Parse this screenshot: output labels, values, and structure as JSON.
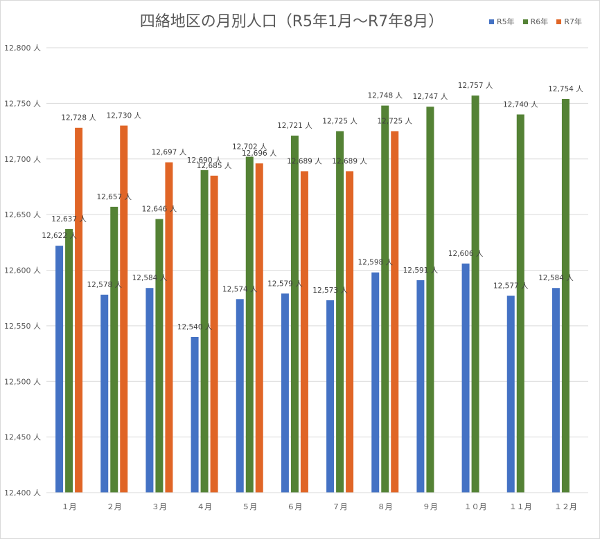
{
  "chart_data": {
    "type": "bar",
    "title": "四絡地区の月別人口（R5年1月～R7年8月）",
    "categories": [
      "１月",
      "２月",
      "３月",
      "４月",
      "５月",
      "６月",
      "７月",
      "８月",
      "９月",
      "１０月",
      "１１月",
      "１２月"
    ],
    "series": [
      {
        "name": "R5年",
        "color": "#4472c4",
        "values": [
          12622,
          12578,
          12584,
          12540,
          12574,
          12579,
          12573,
          12598,
          12591,
          12606,
          12577,
          12584
        ]
      },
      {
        "name": "R6年",
        "color": "#548235",
        "values": [
          12637,
          12657,
          12646,
          12690,
          12702,
          12721,
          12725,
          12748,
          12747,
          12757,
          12740,
          12754
        ]
      },
      {
        "name": "R7年",
        "color": "#e06526",
        "values": [
          12728,
          12730,
          12697,
          12685,
          12696,
          12689,
          12689,
          12725,
          null,
          null,
          null,
          null
        ]
      }
    ],
    "ylim": [
      12400,
      12800
    ],
    "yticks": [
      12400,
      12450,
      12500,
      12550,
      12600,
      12650,
      12700,
      12750,
      12800
    ],
    "unit_suffix": " 人",
    "grid": true,
    "legend_position": "top-right"
  }
}
